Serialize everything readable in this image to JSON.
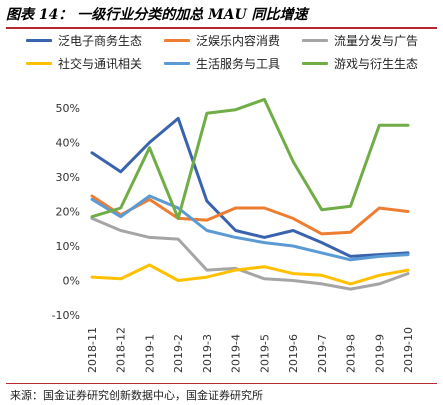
{
  "header": {
    "title": "图表 14： 一级行业分类的加总 MAU 同比增速"
  },
  "footer": {
    "source": "来源：国金证券研究创新数据中心，国金证券研究所"
  },
  "chart_data": {
    "type": "line",
    "title": "图表 14： 一级行业分类的加总 MAU 同比增速",
    "xlabel": "",
    "ylabel": "",
    "ylim": [
      -10,
      50
    ],
    "yticks": [
      "-10%",
      "0%",
      "10%",
      "20%",
      "30%",
      "40%",
      "50%"
    ],
    "yticks_values": [
      -10,
      0,
      10,
      20,
      30,
      40,
      50
    ],
    "grid": false,
    "legend_position": "top",
    "categories": [
      "2018-11",
      "2018-12",
      "2019-1",
      "2019-2",
      "2019-3",
      "2019-4",
      "2019-5",
      "2019-6",
      "2019-7",
      "2019-8",
      "2019-9",
      "2019-10"
    ],
    "series": [
      {
        "name": "泛电子商务生态",
        "color": "#3a63ad",
        "values": [
          37,
          31.5,
          40,
          47,
          23,
          14.5,
          12.5,
          14.5,
          11,
          7,
          7.5,
          8
        ]
      },
      {
        "name": "泛娱乐内容消费",
        "color": "#ed7d31",
        "values": [
          24.5,
          19,
          23.5,
          18,
          17.5,
          21,
          21,
          18,
          13.5,
          14,
          21,
          20
        ]
      },
      {
        "name": "流量分发与广告",
        "color": "#a5a5a5",
        "values": [
          18,
          14.5,
          12.5,
          12,
          3,
          3.5,
          0.5,
          0,
          -1,
          -2.5,
          -1,
          2
        ]
      },
      {
        "name": "社交与通讯相关",
        "color": "#ffc000",
        "values": [
          1,
          0.5,
          4.5,
          0,
          1,
          3,
          4,
          2,
          1.5,
          -1,
          1.5,
          3
        ]
      },
      {
        "name": "生活服务与工具",
        "color": "#5b9bd5",
        "values": [
          23.5,
          18.5,
          24.5,
          21,
          14.5,
          12.5,
          11,
          10,
          8,
          6,
          7,
          7.5
        ]
      },
      {
        "name": "游戏与衍生生态",
        "color": "#70ad47",
        "values": [
          18.5,
          21,
          38.5,
          18,
          48.5,
          49.5,
          52.5,
          34.5,
          20.5,
          21.5,
          45,
          45
        ]
      }
    ]
  }
}
